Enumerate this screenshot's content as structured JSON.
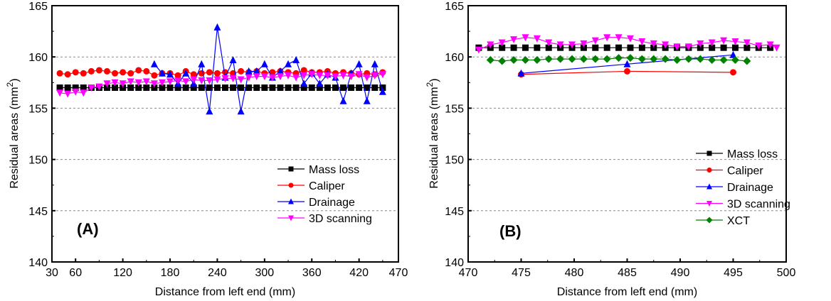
{
  "chart_data": [
    {
      "type": "line",
      "panel_label": "(A)",
      "xlabel": "Distance from left end (mm)",
      "ylabel": "Residual areas (mm",
      "ylabel_sup": "2",
      "ylabel_close": ")",
      "xlim": [
        30,
        470
      ],
      "ylim": [
        140,
        165
      ],
      "xticks": [
        30,
        60,
        120,
        180,
        240,
        300,
        360,
        420,
        470
      ],
      "xticks_major_positions": [
        30,
        60,
        120,
        180,
        240,
        300,
        360,
        420
      ],
      "xticks_minor_positions": [
        90,
        150,
        210,
        270,
        330,
        390,
        450
      ],
      "yticks": [
        140,
        145,
        150,
        155,
        160,
        165
      ],
      "grid": "horizontal-dashed",
      "legend_position": "center-right",
      "series": [
        {
          "name": "Mass loss",
          "color": "#000000",
          "marker": "square",
          "x": [
            40,
            50,
            60,
            70,
            80,
            90,
            100,
            110,
            120,
            130,
            140,
            150,
            160,
            170,
            180,
            190,
            200,
            210,
            220,
            230,
            240,
            250,
            260,
            270,
            280,
            290,
            300,
            310,
            320,
            330,
            340,
            350,
            360,
            370,
            380,
            390,
            400,
            410,
            420,
            430,
            440,
            450
          ],
          "y": [
            157.0,
            157.0,
            157.0,
            157.0,
            157.0,
            157.0,
            157.0,
            157.0,
            157.0,
            157.0,
            157.0,
            157.0,
            157.0,
            157.0,
            157.0,
            157.0,
            157.0,
            157.0,
            157.0,
            157.0,
            157.0,
            157.0,
            157.0,
            157.0,
            157.0,
            157.0,
            157.0,
            157.0,
            157.0,
            157.0,
            157.0,
            157.0,
            157.0,
            157.0,
            157.0,
            157.0,
            157.0,
            157.0,
            157.0,
            157.0,
            157.0,
            157.0
          ]
        },
        {
          "name": "Caliper",
          "color": "#ff0000",
          "marker": "circle",
          "x": [
            40,
            50,
            60,
            70,
            80,
            90,
            100,
            110,
            120,
            130,
            140,
            150,
            160,
            170,
            180,
            190,
            200,
            210,
            220,
            230,
            240,
            250,
            260,
            270,
            280,
            290,
            300,
            310,
            320,
            330,
            340,
            350,
            360,
            370,
            380,
            390,
            400,
            410,
            420,
            430,
            440,
            450
          ],
          "y": [
            158.4,
            158.3,
            158.5,
            158.4,
            158.6,
            158.7,
            158.6,
            158.4,
            158.5,
            158.4,
            158.7,
            158.6,
            158.2,
            158.4,
            158.4,
            158.2,
            158.6,
            158.3,
            158.4,
            158.5,
            158.4,
            158.5,
            158.4,
            158.6,
            158.5,
            158.6,
            158.4,
            158.5,
            158.6,
            158.5,
            158.4,
            158.7,
            158.5,
            158.5,
            158.6,
            158.4,
            158.5,
            158.4,
            158.3,
            158.4,
            158.3,
            158.5
          ]
        },
        {
          "name": "Drainage",
          "color": "#0000ff",
          "marker": "triangle-up",
          "x": [
            160,
            170,
            180,
            190,
            200,
            210,
            220,
            230,
            240,
            250,
            260,
            270,
            280,
            290,
            300,
            310,
            320,
            330,
            340,
            350,
            360,
            370,
            380,
            390,
            400,
            410,
            420,
            430,
            440,
            450
          ],
          "y": [
            159.3,
            158.4,
            158.3,
            157.4,
            158.4,
            157.4,
            159.3,
            154.7,
            162.9,
            158.0,
            159.7,
            154.7,
            158.6,
            158.6,
            159.3,
            158.0,
            158.6,
            159.3,
            159.7,
            157.4,
            158.4,
            157.4,
            158.3,
            158.0,
            155.7,
            158.4,
            159.3,
            155.7,
            159.3,
            156.6
          ]
        },
        {
          "name": "3D scanning",
          "color": "#ff00ff",
          "marker": "triangle-down",
          "x": [
            40,
            50,
            60,
            70,
            80,
            90,
            100,
            110,
            120,
            130,
            140,
            150,
            160,
            170,
            180,
            190,
            200,
            210,
            220,
            230,
            240,
            250,
            260,
            270,
            280,
            290,
            300,
            310,
            320,
            330,
            340,
            350,
            360,
            370,
            380,
            390,
            400,
            410,
            420,
            430,
            440,
            450
          ],
          "y": [
            156.5,
            156.4,
            156.6,
            156.5,
            157.0,
            157.1,
            157.4,
            157.5,
            157.4,
            157.6,
            157.5,
            157.6,
            157.4,
            157.5,
            157.6,
            157.7,
            157.6,
            157.8,
            157.7,
            157.7,
            157.8,
            157.9,
            157.9,
            157.8,
            158.0,
            158.1,
            158.1,
            158.0,
            158.1,
            158.2,
            158.0,
            158.2,
            158.3,
            158.2,
            158.2,
            158.1,
            158.2,
            158.1,
            158.3,
            158.0,
            158.2,
            158.3
          ]
        }
      ]
    },
    {
      "type": "line",
      "panel_label": "(B)",
      "xlabel": "Distance from left end (mm)",
      "ylabel": "Residual areas (mm",
      "ylabel_sup": "2",
      "ylabel_close": ")",
      "xlim": [
        470,
        500
      ],
      "ylim": [
        140,
        165
      ],
      "xticks": [
        470,
        475,
        480,
        485,
        490,
        495,
        500
      ],
      "yticks": [
        140,
        145,
        150,
        155,
        160,
        165
      ],
      "grid": "horizontal-dashed",
      "legend_position": "center-right",
      "series": [
        {
          "name": "Mass loss",
          "color": "#000000",
          "marker": "square",
          "x": [
            471,
            472.1,
            473.2,
            474.3,
            475.4,
            476.5,
            477.6,
            478.7,
            479.8,
            480.9,
            482.0,
            483.1,
            484.2,
            485.3,
            486.4,
            487.5,
            488.6,
            489.7,
            490.8,
            491.9,
            493.0,
            494.1,
            495.2,
            496.3,
            497.4,
            498.5
          ],
          "y": [
            160.9,
            160.9,
            160.9,
            160.9,
            160.9,
            160.9,
            160.9,
            160.9,
            160.9,
            160.9,
            160.9,
            160.9,
            160.9,
            160.9,
            160.9,
            160.9,
            160.9,
            160.9,
            160.9,
            160.9,
            160.9,
            160.9,
            160.9,
            160.9,
            160.9,
            160.9
          ]
        },
        {
          "name": "Caliper",
          "color": "#ff0000",
          "marker": "circle",
          "x": [
            475,
            485,
            495
          ],
          "y": [
            158.3,
            158.6,
            158.5
          ]
        },
        {
          "name": "Drainage",
          "color": "#0000ff",
          "marker": "triangle-up",
          "x": [
            475,
            485,
            495
          ],
          "y": [
            158.4,
            159.3,
            160.2
          ]
        },
        {
          "name": "3D scanning",
          "color": "#ff00ff",
          "marker": "triangle-down",
          "x": [
            471,
            472.1,
            473.2,
            474.3,
            475.4,
            476.5,
            477.6,
            478.7,
            479.8,
            480.9,
            482.0,
            483.1,
            484.2,
            485.3,
            486.4,
            487.5,
            488.6,
            489.7,
            490.8,
            491.9,
            493.0,
            494.1,
            495.2,
            496.3,
            497.4,
            498.5,
            499.1
          ],
          "y": [
            160.7,
            161.2,
            161.4,
            161.7,
            161.9,
            161.8,
            161.4,
            161.2,
            161.2,
            161.3,
            161.6,
            161.9,
            161.9,
            161.8,
            161.5,
            161.3,
            161.2,
            161.0,
            161.0,
            161.3,
            161.4,
            161.6,
            161.5,
            161.4,
            161.1,
            161.2,
            160.9
          ]
        },
        {
          "name": "XCT",
          "color": "#008000",
          "marker": "diamond",
          "x": [
            472.1,
            473.2,
            474.3,
            475.4,
            476.5,
            477.6,
            478.7,
            479.8,
            480.9,
            482.0,
            483.1,
            484.2,
            485.3,
            486.4,
            487.5,
            488.6,
            489.7,
            490.8,
            491.9,
            493.0,
            494.1,
            495.2,
            496.3
          ],
          "y": [
            159.7,
            159.6,
            159.7,
            159.7,
            159.7,
            159.8,
            159.8,
            159.8,
            159.8,
            159.8,
            159.8,
            159.9,
            159.9,
            159.8,
            159.8,
            159.8,
            159.7,
            159.8,
            159.8,
            159.7,
            159.7,
            159.7,
            159.6
          ]
        }
      ]
    }
  ]
}
